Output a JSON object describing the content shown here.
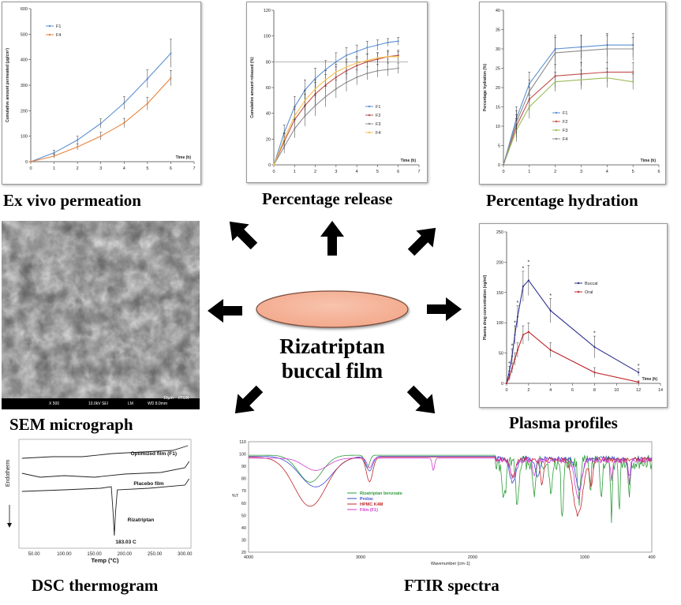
{
  "center": {
    "title_line1": "Rizatriptan",
    "title_line2": "buccal film",
    "film_color": "#f3a98c"
  },
  "captions": {
    "ex_vivo": "Ex vivo permeation",
    "release": "Percentage release",
    "hydration": "Percentage hydration",
    "sem": "SEM micrograph",
    "plasma": "Plasma profiles",
    "dsc": "DSC thermogram",
    "ftir": "FTIR spectra"
  },
  "sem": {
    "scale_label": "10µm",
    "org": "IITGN",
    "mag": "X 500",
    "kv": "10.0kV SEI",
    "mode": "LM",
    "wd": "WD 8.0mm"
  },
  "charts": [
    {
      "id": "ex_vivo",
      "type": "line",
      "xlabel": "Time (h)",
      "ylabel": "Cumulative amount permeated (µg/cm²)",
      "xlim": [
        0,
        7
      ],
      "ylim": [
        0,
        600
      ],
      "xticks": [
        0,
        1,
        2,
        3,
        4,
        5,
        6,
        7
      ],
      "yticks": [
        0,
        100,
        200,
        300,
        400,
        500,
        600
      ],
      "legend": "top-left",
      "x": [
        0,
        1,
        2,
        3,
        4,
        5,
        6
      ],
      "series": [
        {
          "name": "F1",
          "color": "#5b8fd4",
          "values": [
            0,
            35,
            85,
            150,
            230,
            325,
            425
          ],
          "err": [
            0,
            10,
            15,
            18,
            25,
            35,
            55
          ]
        },
        {
          "name": "F4",
          "color": "#e8823a",
          "values": [
            0,
            22,
            58,
            100,
            152,
            228,
            328
          ],
          "err": [
            0,
            8,
            12,
            15,
            18,
            25,
            30
          ]
        }
      ]
    },
    {
      "id": "release",
      "type": "line",
      "xlabel": "Time (h)",
      "ylabel": "Cumulative amount released (%)",
      "xlim": [
        0,
        7
      ],
      "ylim": [
        0,
        120
      ],
      "xticks": [
        0,
        1,
        2,
        3,
        4,
        5,
        6,
        7
      ],
      "yticks": [
        0,
        20,
        40,
        60,
        80,
        100,
        120
      ],
      "legend": "right",
      "reference_y": 80,
      "x": [
        0,
        0.5,
        1,
        1.5,
        2,
        2.5,
        3,
        3.5,
        4,
        4.5,
        5,
        5.5,
        6
      ],
      "series": [
        {
          "name": "F1",
          "color": "#5b8fd4",
          "values": [
            0,
            25,
            45,
            58,
            67,
            74,
            80,
            85,
            88,
            91,
            93,
            95,
            96
          ],
          "err": [
            0,
            6,
            8,
            8,
            8,
            7,
            7,
            6,
            5,
            5,
            4,
            3,
            3
          ]
        },
        {
          "name": "F2",
          "color": "#c0504d",
          "values": [
            0,
            18,
            35,
            46,
            55,
            62,
            68,
            73,
            77,
            80,
            82,
            84,
            85
          ],
          "err": [
            0,
            6,
            8,
            9,
            9,
            8,
            8,
            7,
            6,
            6,
            5,
            5,
            4
          ]
        },
        {
          "name": "F3",
          "color": "#8c8c8c",
          "values": [
            0,
            14,
            28,
            38,
            46,
            53,
            59,
            64,
            68,
            71,
            73,
            74,
            75
          ],
          "err": [
            0,
            5,
            7,
            8,
            8,
            8,
            7,
            7,
            6,
            5,
            5,
            5,
            4
          ]
        },
        {
          "name": "F4",
          "color": "#f5c04a",
          "values": [
            0,
            20,
            38,
            50,
            59,
            66,
            72,
            76,
            79,
            81,
            83,
            84,
            84
          ],
          "err": [
            0,
            5,
            7,
            8,
            7,
            7,
            6,
            6,
            5,
            5,
            4,
            4,
            4
          ]
        }
      ]
    },
    {
      "id": "hydration",
      "type": "line",
      "xlabel": "Time (h)",
      "ylabel": "Percentage hydration (%)",
      "xlim": [
        0,
        6
      ],
      "ylim": [
        0,
        40
      ],
      "xticks": [
        0,
        1,
        2,
        3,
        4,
        5,
        6
      ],
      "yticks": [
        0,
        5,
        10,
        15,
        20,
        25,
        30,
        35,
        40
      ],
      "legend": "bottom-left",
      "x": [
        0,
        0.5,
        1,
        2,
        3,
        4,
        5
      ],
      "series": [
        {
          "name": "F1",
          "color": "#5b8fd4",
          "values": [
            0,
            12,
            21,
            30,
            30.5,
            31,
            31
          ],
          "err": [
            0,
            3,
            3,
            3.5,
            3,
            3,
            3
          ]
        },
        {
          "name": "F2",
          "color": "#c0504d",
          "values": [
            0,
            10,
            17,
            23,
            23.5,
            24,
            24
          ],
          "err": [
            0,
            3,
            3,
            3,
            3,
            2.5,
            2.5
          ]
        },
        {
          "name": "F3",
          "color": "#9bbb59",
          "values": [
            0,
            9,
            15,
            21.5,
            22,
            22.5,
            21.5
          ],
          "err": [
            0,
            3,
            3,
            2.5,
            2.5,
            2.5,
            2
          ]
        },
        {
          "name": "F4",
          "color": "#8c8c8c",
          "values": [
            0,
            11,
            19,
            29,
            29.5,
            30,
            30
          ],
          "err": [
            0,
            3,
            3,
            4,
            4,
            3.5,
            3
          ]
        }
      ]
    },
    {
      "id": "plasma",
      "type": "line",
      "xlabel": "Time (h)",
      "ylabel": "Plasma drug concentration (ng/ml)",
      "xlim": [
        0,
        14
      ],
      "ylim": [
        0,
        250
      ],
      "xticks": [
        0,
        2,
        4,
        6,
        8,
        10,
        12,
        14
      ],
      "yticks": [
        0,
        50,
        100,
        150,
        200,
        250
      ],
      "legend": "right",
      "sig_marker": "*",
      "x": [
        0,
        0.25,
        0.5,
        0.75,
        1,
        1.5,
        2,
        4,
        8,
        12
      ],
      "series": [
        {
          "name": "Buccal",
          "color": "#2e3192",
          "values": [
            0,
            20,
            45,
            80,
            110,
            160,
            170,
            120,
            60,
            18
          ],
          "err": [
            0,
            8,
            12,
            15,
            18,
            25,
            25,
            20,
            18,
            6
          ]
        },
        {
          "name": "Oral",
          "color": "#c0272d",
          "values": [
            0,
            10,
            25,
            40,
            55,
            80,
            85,
            55,
            18,
            2
          ],
          "err": [
            0,
            5,
            8,
            10,
            12,
            15,
            15,
            12,
            8,
            2
          ]
        }
      ]
    },
    {
      "id": "dsc",
      "type": "line",
      "xlabel": "Temp (°C)",
      "ylabel": "Endotherm",
      "xlim": [
        25,
        310
      ],
      "xtick_labels": [
        "50.00",
        "100.00",
        "150.00",
        "200.00",
        "250.00",
        "300.00"
      ],
      "xticks": [
        50,
        100,
        150,
        200,
        250,
        300
      ],
      "annotation": "183.03 C",
      "series": [
        {
          "name": "Optimized film (F1)"
        },
        {
          "name": "Placebo film"
        },
        {
          "name": "Rizatriptan"
        }
      ]
    },
    {
      "id": "ftir",
      "type": "line",
      "xlabel": "Wavenumber [cm-1]",
      "ylabel": "%T",
      "xlim": [
        4000,
        400
      ],
      "ylim": [
        20,
        110
      ],
      "xticks": [
        4000,
        3000,
        2000,
        1000,
        400
      ],
      "yticks": [
        20,
        30,
        40,
        50,
        60,
        70,
        80,
        90,
        100,
        110
      ],
      "legend": "center",
      "series": [
        {
          "name": "Rizatriptan benzoate",
          "color": "#2e9c3a"
        },
        {
          "name": "Proloc",
          "color": "#3a4ad4"
        },
        {
          "name": "HPMC K4M",
          "color": "#c0272d"
        },
        {
          "name": "Film (F1)",
          "color": "#d23cd2"
        }
      ]
    }
  ]
}
